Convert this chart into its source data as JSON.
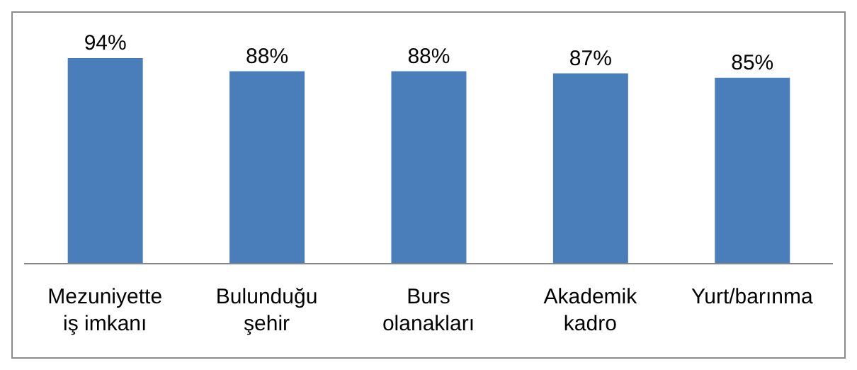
{
  "chart_data": {
    "type": "bar",
    "categories": [
      "Mezuniyette iş imkanı",
      "Bulunduğu şehir",
      "Burs olanakları",
      "Akademik kadro",
      "Yurt/barınma"
    ],
    "values": [
      94,
      88,
      88,
      87,
      85
    ],
    "value_labels": [
      "94%",
      "88%",
      "88%",
      "87%",
      "85%"
    ],
    "color": "#4a7ebb",
    "tick_labels": "x"
  }
}
